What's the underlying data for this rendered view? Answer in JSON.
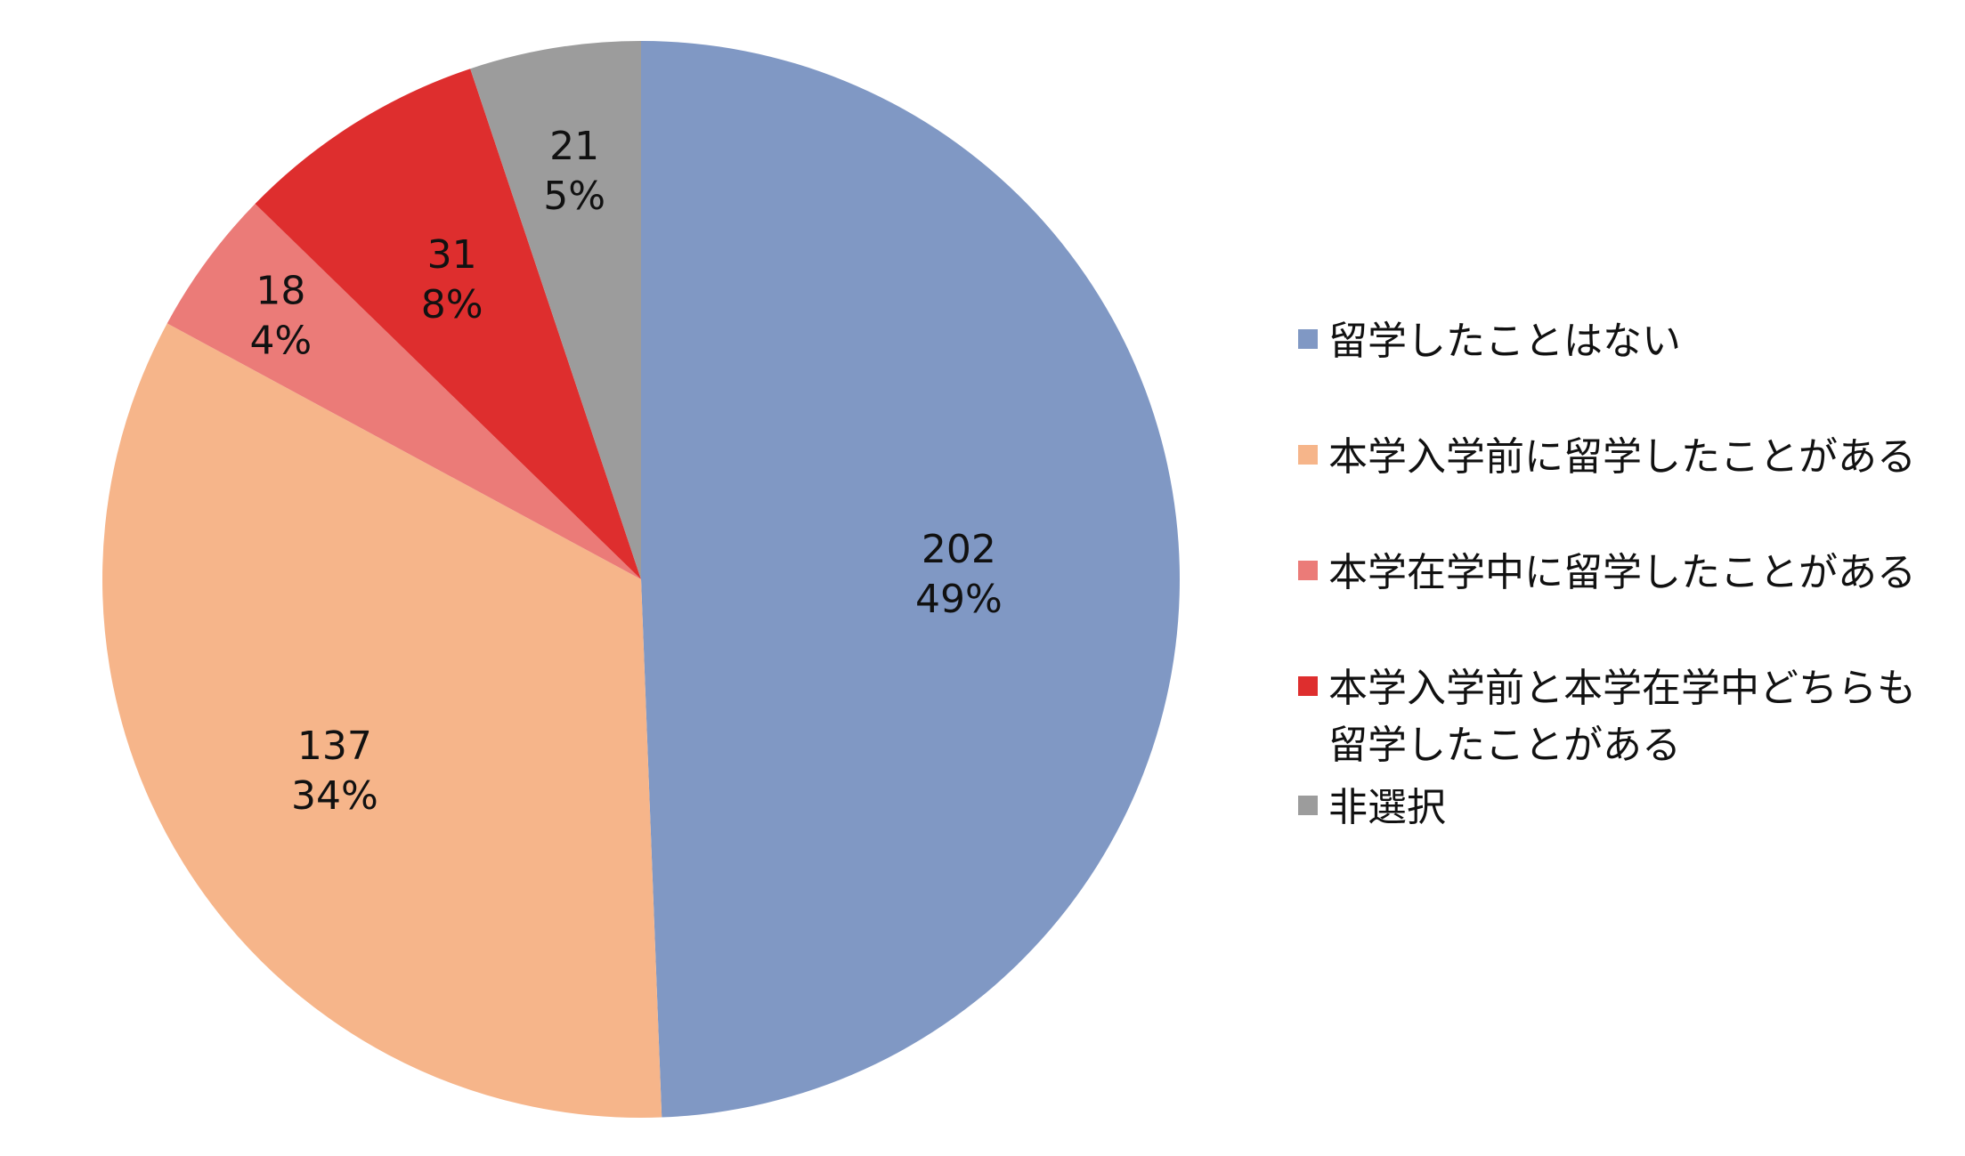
{
  "chart_data": {
    "type": "pie",
    "legend_position": "right",
    "slices": [
      {
        "label": "留学したことはない",
        "value": 202,
        "percent": "49%",
        "color": "#8098C4"
      },
      {
        "label": "本学入学前に留学したことがある",
        "value": 137,
        "percent": "34%",
        "color": "#F6B58A"
      },
      {
        "label": "本学在学中に留学したことがある",
        "value": 18,
        "percent": "4%",
        "color": "#EB7B78"
      },
      {
        "label": "本学入学前と本学在学中どちらも留学したことがある",
        "value": 31,
        "percent": "8%",
        "color": "#DE2E2E"
      },
      {
        "label": "非選択",
        "value": 21,
        "percent": "5%",
        "color": "#9C9C9C"
      }
    ]
  },
  "legend": {
    "items": [
      {
        "label": "留学したことはない",
        "color": "#8098C4"
      },
      {
        "label": "本学入学前に留学したことがある",
        "color": "#F6B58A"
      },
      {
        "label": "本学在学中に留学したことがある",
        "color": "#EB7B78"
      },
      {
        "label": "本学入学前と本学在学中どちらも留学したことがある",
        "color": "#DE2E2E"
      },
      {
        "label": "非選択",
        "color": "#9C9C9C"
      }
    ]
  }
}
